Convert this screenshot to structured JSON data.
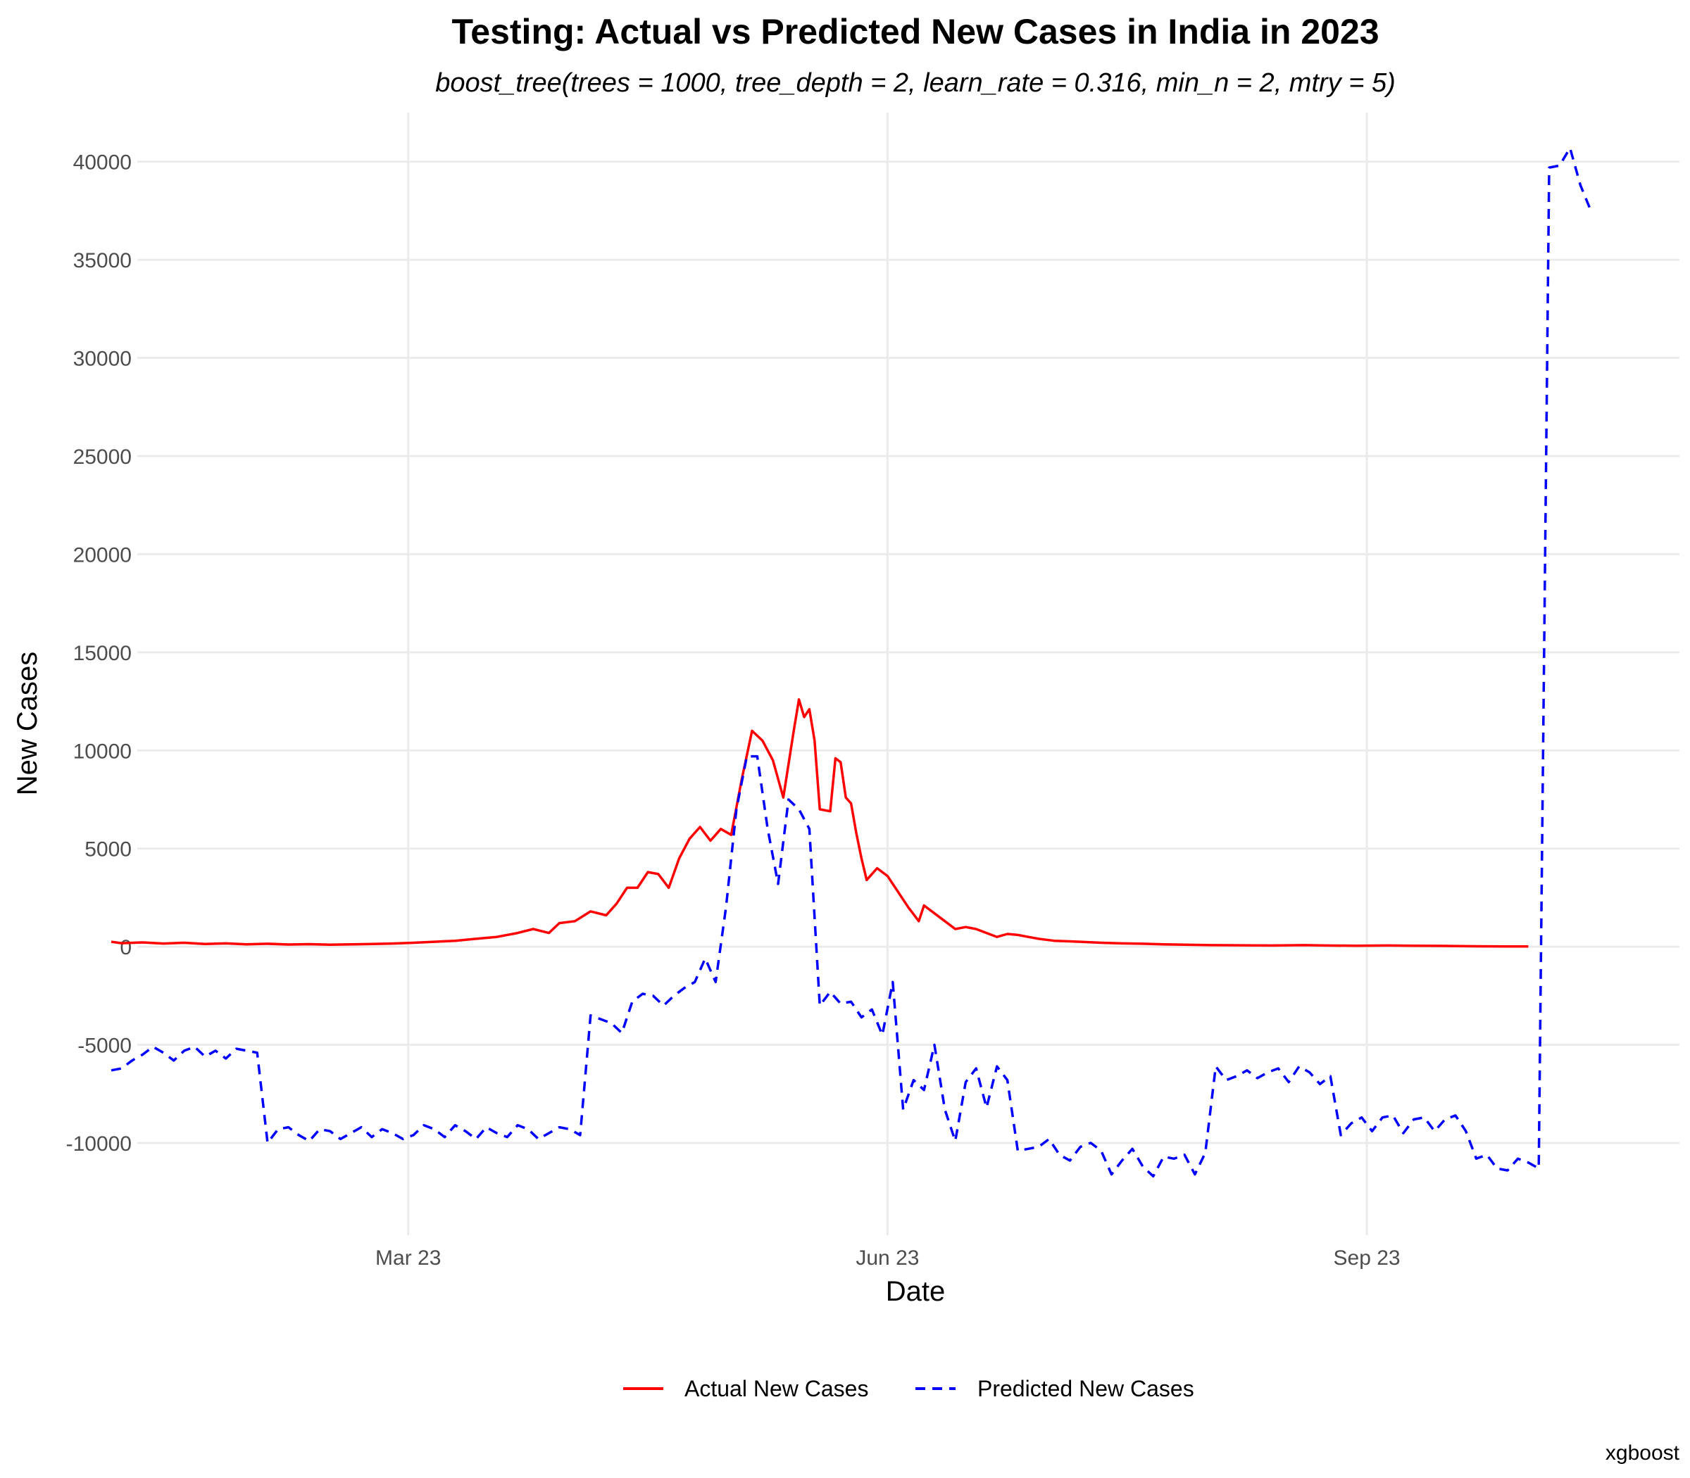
{
  "chart_data": {
    "type": "line",
    "title": "Testing: Actual vs Predicted New Cases in India in 2023",
    "subtitle": "boost_tree(trees = 1000, tree_depth = 2, learn_rate = 0.316, min_n = 2, mtry = 5)",
    "xlabel": "Date",
    "ylabel": "New Cases",
    "caption": "xgboost",
    "x_ticks": [
      {
        "date": "2023-03-01",
        "label": "Mar 23"
      },
      {
        "date": "2023-06-01",
        "label": "Jun 23"
      },
      {
        "date": "2023-09-01",
        "label": "Sep 23"
      }
    ],
    "y_ticks": [
      -10000,
      -5000,
      0,
      5000,
      10000,
      15000,
      20000,
      25000,
      30000,
      35000,
      40000
    ],
    "xlim": [
      "2023-01-08",
      "2023-10-31"
    ],
    "ylim": [
      -14700,
      42500
    ],
    "grid": true,
    "legend": {
      "position": "bottom"
    },
    "series": [
      {
        "name": "Actual New Cases",
        "color": "#ff0000",
        "dash": "solid",
        "points": [
          [
            "2023-01-03",
            250
          ],
          [
            "2023-01-05",
            180
          ],
          [
            "2023-01-09",
            220
          ],
          [
            "2023-01-13",
            160
          ],
          [
            "2023-01-17",
            200
          ],
          [
            "2023-01-21",
            140
          ],
          [
            "2023-01-25",
            170
          ],
          [
            "2023-01-29",
            120
          ],
          [
            "2023-02-02",
            150
          ],
          [
            "2023-02-06",
            110
          ],
          [
            "2023-02-10",
            130
          ],
          [
            "2023-02-14",
            100
          ],
          [
            "2023-02-18",
            120
          ],
          [
            "2023-02-22",
            140
          ],
          [
            "2023-02-26",
            160
          ],
          [
            "2023-03-02",
            200
          ],
          [
            "2023-03-06",
            250
          ],
          [
            "2023-03-10",
            300
          ],
          [
            "2023-03-14",
            400
          ],
          [
            "2023-03-18",
            500
          ],
          [
            "2023-03-22",
            700
          ],
          [
            "2023-03-25",
            900
          ],
          [
            "2023-03-28",
            700
          ],
          [
            "2023-03-30",
            1200
          ],
          [
            "2023-04-02",
            1300
          ],
          [
            "2023-04-05",
            1800
          ],
          [
            "2023-04-08",
            1600
          ],
          [
            "2023-04-10",
            2200
          ],
          [
            "2023-04-12",
            3000
          ],
          [
            "2023-04-14",
            3000
          ],
          [
            "2023-04-16",
            3800
          ],
          [
            "2023-04-18",
            3700
          ],
          [
            "2023-04-20",
            3000
          ],
          [
            "2023-04-22",
            4500
          ],
          [
            "2023-04-24",
            5500
          ],
          [
            "2023-04-26",
            6100
          ],
          [
            "2023-04-28",
            5400
          ],
          [
            "2023-04-30",
            6000
          ],
          [
            "2023-05-02",
            5700
          ],
          [
            "2023-05-04",
            8500
          ],
          [
            "2023-05-06",
            11000
          ],
          [
            "2023-05-08",
            10500
          ],
          [
            "2023-05-10",
            9500
          ],
          [
            "2023-05-12",
            7600
          ],
          [
            "2023-05-14",
            11000
          ],
          [
            "2023-05-15",
            12600
          ],
          [
            "2023-05-16",
            11700
          ],
          [
            "2023-05-17",
            12100
          ],
          [
            "2023-05-18",
            10500
          ],
          [
            "2023-05-19",
            7000
          ],
          [
            "2023-05-21",
            6900
          ],
          [
            "2023-05-22",
            9600
          ],
          [
            "2023-05-23",
            9400
          ],
          [
            "2023-05-24",
            7600
          ],
          [
            "2023-05-25",
            7300
          ],
          [
            "2023-05-26",
            5800
          ],
          [
            "2023-05-27",
            4500
          ],
          [
            "2023-05-28",
            3400
          ],
          [
            "2023-05-30",
            4000
          ],
          [
            "2023-06-01",
            3600
          ],
          [
            "2023-06-03",
            2800
          ],
          [
            "2023-06-05",
            2000
          ],
          [
            "2023-06-07",
            1300
          ],
          [
            "2023-06-08",
            2100
          ],
          [
            "2023-06-10",
            1700
          ],
          [
            "2023-06-12",
            1300
          ],
          [
            "2023-06-14",
            900
          ],
          [
            "2023-06-16",
            1000
          ],
          [
            "2023-06-18",
            900
          ],
          [
            "2023-06-20",
            700
          ],
          [
            "2023-06-22",
            500
          ],
          [
            "2023-06-24",
            650
          ],
          [
            "2023-06-26",
            600
          ],
          [
            "2023-06-28",
            500
          ],
          [
            "2023-06-30",
            400
          ],
          [
            "2023-07-03",
            300
          ],
          [
            "2023-07-05",
            280
          ],
          [
            "2023-07-08",
            250
          ],
          [
            "2023-07-12",
            200
          ],
          [
            "2023-07-16",
            170
          ],
          [
            "2023-07-20",
            150
          ],
          [
            "2023-07-24",
            120
          ],
          [
            "2023-07-28",
            100
          ],
          [
            "2023-08-02",
            80
          ],
          [
            "2023-08-08",
            70
          ],
          [
            "2023-08-14",
            60
          ],
          [
            "2023-08-20",
            80
          ],
          [
            "2023-08-24",
            60
          ],
          [
            "2023-08-30",
            50
          ],
          [
            "2023-09-05",
            60
          ],
          [
            "2023-09-10",
            50
          ],
          [
            "2023-09-16",
            40
          ],
          [
            "2023-09-22",
            20
          ],
          [
            "2023-09-28",
            10
          ],
          [
            "2023-10-02",
            10
          ]
        ]
      },
      {
        "name": "Predicted New Cases",
        "color": "#0000ff",
        "dash": "dashed",
        "points": [
          [
            "2023-01-03",
            -6300
          ],
          [
            "2023-01-05",
            -6200
          ],
          [
            "2023-01-07",
            -5800
          ],
          [
            "2023-01-09",
            -5500
          ],
          [
            "2023-01-11",
            -5100
          ],
          [
            "2023-01-13",
            -5400
          ],
          [
            "2023-01-15",
            -5800
          ],
          [
            "2023-01-17",
            -5300
          ],
          [
            "2023-01-19",
            -5100
          ],
          [
            "2023-01-21",
            -5600
          ],
          [
            "2023-01-23",
            -5300
          ],
          [
            "2023-01-25",
            -5700
          ],
          [
            "2023-01-27",
            -5200
          ],
          [
            "2023-01-29",
            -5300
          ],
          [
            "2023-01-31",
            -5400
          ],
          [
            "2023-02-02",
            -10000
          ],
          [
            "2023-02-04",
            -9300
          ],
          [
            "2023-02-06",
            -9200
          ],
          [
            "2023-02-08",
            -9600
          ],
          [
            "2023-02-10",
            -9900
          ],
          [
            "2023-02-12",
            -9300
          ],
          [
            "2023-02-14",
            -9400
          ],
          [
            "2023-02-16",
            -9800
          ],
          [
            "2023-02-18",
            -9500
          ],
          [
            "2023-02-20",
            -9200
          ],
          [
            "2023-02-22",
            -9700
          ],
          [
            "2023-02-24",
            -9300
          ],
          [
            "2023-02-26",
            -9500
          ],
          [
            "2023-02-28",
            -9800
          ],
          [
            "2023-03-02",
            -9600
          ],
          [
            "2023-03-04",
            -9100
          ],
          [
            "2023-03-06",
            -9300
          ],
          [
            "2023-03-08",
            -9700
          ],
          [
            "2023-03-10",
            -9100
          ],
          [
            "2023-03-12",
            -9400
          ],
          [
            "2023-03-14",
            -9800
          ],
          [
            "2023-03-16",
            -9200
          ],
          [
            "2023-03-18",
            -9500
          ],
          [
            "2023-03-20",
            -9700
          ],
          [
            "2023-03-22",
            -9100
          ],
          [
            "2023-03-24",
            -9300
          ],
          [
            "2023-03-26",
            -9800
          ],
          [
            "2023-03-28",
            -9500
          ],
          [
            "2023-03-30",
            -9200
          ],
          [
            "2023-04-01",
            -9300
          ],
          [
            "2023-04-03",
            -9600
          ],
          [
            "2023-04-05",
            -3500
          ],
          [
            "2023-04-07",
            -3700
          ],
          [
            "2023-04-09",
            -3900
          ],
          [
            "2023-04-11",
            -4400
          ],
          [
            "2023-04-13",
            -2800
          ],
          [
            "2023-04-15",
            -2400
          ],
          [
            "2023-04-17",
            -2500
          ],
          [
            "2023-04-19",
            -3000
          ],
          [
            "2023-04-21",
            -2500
          ],
          [
            "2023-04-23",
            -2100
          ],
          [
            "2023-04-25",
            -1800
          ],
          [
            "2023-04-27",
            -600
          ],
          [
            "2023-04-29",
            -1800
          ],
          [
            "2023-05-01",
            2000
          ],
          [
            "2023-05-03",
            7000
          ],
          [
            "2023-05-05",
            9700
          ],
          [
            "2023-05-07",
            9700
          ],
          [
            "2023-05-09",
            6000
          ],
          [
            "2023-05-11",
            3200
          ],
          [
            "2023-05-13",
            7500
          ],
          [
            "2023-05-15",
            7000
          ],
          [
            "2023-05-17",
            6000
          ],
          [
            "2023-05-19",
            -3000
          ],
          [
            "2023-05-21",
            -2300
          ],
          [
            "2023-05-23",
            -2900
          ],
          [
            "2023-05-25",
            -2800
          ],
          [
            "2023-05-27",
            -3600
          ],
          [
            "2023-05-29",
            -3200
          ],
          [
            "2023-05-31",
            -4500
          ],
          [
            "2023-06-02",
            -1800
          ],
          [
            "2023-06-04",
            -8300
          ],
          [
            "2023-06-06",
            -6800
          ],
          [
            "2023-06-08",
            -7300
          ],
          [
            "2023-06-10",
            -5000
          ],
          [
            "2023-06-12",
            -8300
          ],
          [
            "2023-06-14",
            -9900
          ],
          [
            "2023-06-16",
            -6900
          ],
          [
            "2023-06-18",
            -6200
          ],
          [
            "2023-06-20",
            -8200
          ],
          [
            "2023-06-22",
            -6100
          ],
          [
            "2023-06-24",
            -6800
          ],
          [
            "2023-06-26",
            -10400
          ],
          [
            "2023-06-28",
            -10300
          ],
          [
            "2023-06-30",
            -10200
          ],
          [
            "2023-07-02",
            -9800
          ],
          [
            "2023-07-04",
            -10600
          ],
          [
            "2023-07-06",
            -10900
          ],
          [
            "2023-07-08",
            -10200
          ],
          [
            "2023-07-10",
            -10000
          ],
          [
            "2023-07-12",
            -10400
          ],
          [
            "2023-07-14",
            -11600
          ],
          [
            "2023-07-16",
            -10900
          ],
          [
            "2023-07-18",
            -10300
          ],
          [
            "2023-07-20",
            -11200
          ],
          [
            "2023-07-22",
            -11700
          ],
          [
            "2023-07-24",
            -10700
          ],
          [
            "2023-07-26",
            -10800
          ],
          [
            "2023-07-28",
            -10600
          ],
          [
            "2023-07-30",
            -11600
          ],
          [
            "2023-08-01",
            -10500
          ],
          [
            "2023-08-03",
            -6100
          ],
          [
            "2023-08-05",
            -6800
          ],
          [
            "2023-08-07",
            -6600
          ],
          [
            "2023-08-09",
            -6300
          ],
          [
            "2023-08-11",
            -6700
          ],
          [
            "2023-08-13",
            -6400
          ],
          [
            "2023-08-15",
            -6200
          ],
          [
            "2023-08-17",
            -6900
          ],
          [
            "2023-08-19",
            -6100
          ],
          [
            "2023-08-21",
            -6400
          ],
          [
            "2023-08-23",
            -7000
          ],
          [
            "2023-08-25",
            -6600
          ],
          [
            "2023-08-27",
            -9600
          ],
          [
            "2023-08-29",
            -9000
          ],
          [
            "2023-08-31",
            -8700
          ],
          [
            "2023-09-02",
            -9400
          ],
          [
            "2023-09-04",
            -8700
          ],
          [
            "2023-09-06",
            -8600
          ],
          [
            "2023-09-08",
            -9500
          ],
          [
            "2023-09-10",
            -8800
          ],
          [
            "2023-09-12",
            -8700
          ],
          [
            "2023-09-14",
            -9400
          ],
          [
            "2023-09-16",
            -8800
          ],
          [
            "2023-09-18",
            -8600
          ],
          [
            "2023-09-20",
            -9400
          ],
          [
            "2023-09-22",
            -10800
          ],
          [
            "2023-09-24",
            -10600
          ],
          [
            "2023-09-26",
            -11300
          ],
          [
            "2023-09-28",
            -11400
          ],
          [
            "2023-09-30",
            -10800
          ],
          [
            "2023-10-02",
            -11000
          ],
          [
            "2023-10-04",
            -11300
          ],
          [
            "2023-10-06",
            39700
          ],
          [
            "2023-10-08",
            39800
          ],
          [
            "2023-10-10",
            40700
          ],
          [
            "2023-10-12",
            38800
          ],
          [
            "2023-10-14",
            37500
          ]
        ]
      }
    ]
  }
}
